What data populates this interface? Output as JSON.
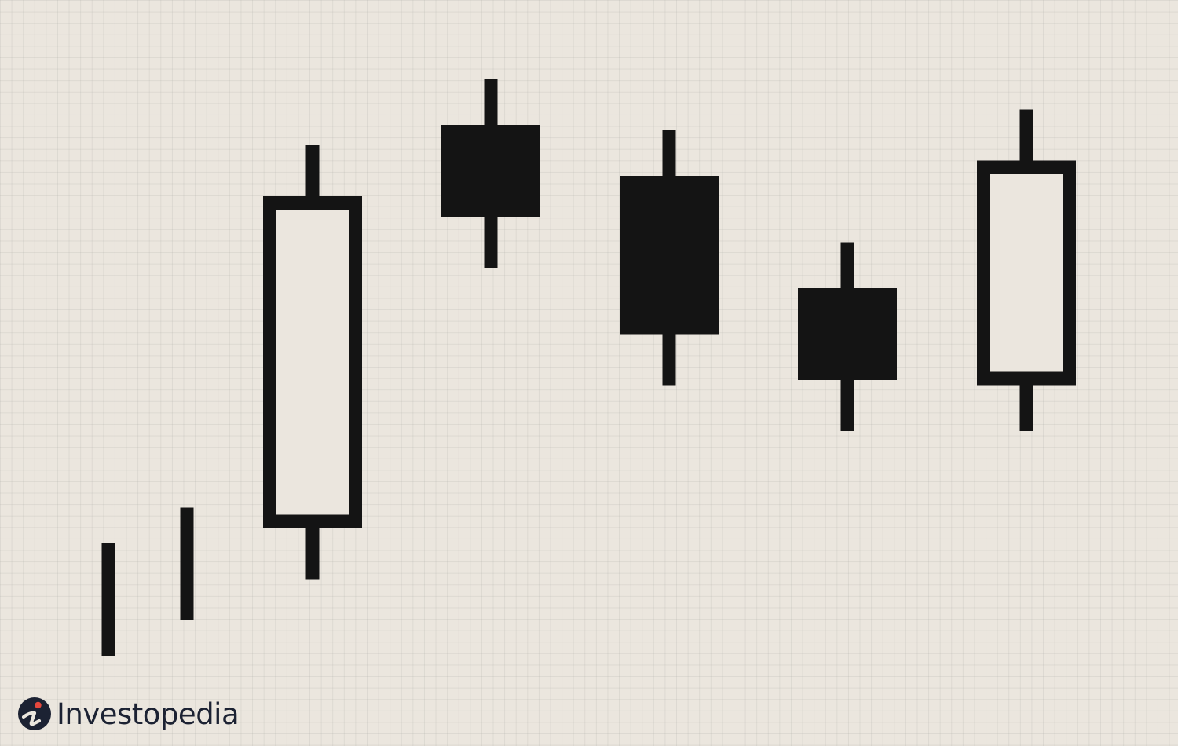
{
  "brand": {
    "name": "Investopedia",
    "mark_color": "#1c2233",
    "accent_color": "#e5473d"
  },
  "chart_data": {
    "type": "candlestick",
    "title": "",
    "xlabel": "",
    "ylabel": "",
    "axes_visible": false,
    "grid": true,
    "ylim": [
      0,
      100
    ],
    "candles": [
      {
        "open": 10,
        "high": 32,
        "low": 10,
        "close": 10,
        "kind": "line"
      },
      {
        "open": 17,
        "high": 39,
        "low": 17,
        "close": 17,
        "kind": "line"
      },
      {
        "open": 35,
        "high": 110,
        "low": 25,
        "close": 100,
        "kind": "hollow"
      },
      {
        "open": 114,
        "high": 123,
        "low": 86,
        "close": 96,
        "kind": "filled"
      },
      {
        "open": 104,
        "high": 113,
        "low": 63,
        "close": 73,
        "kind": "filled"
      },
      {
        "open": 82,
        "high": 91,
        "low": 54,
        "close": 64,
        "kind": "filled"
      },
      {
        "open": 63,
        "high": 117,
        "low": 54,
        "close": 107,
        "kind": "hollow"
      }
    ],
    "colors": {
      "ink": "#141414",
      "hollow_fill": "#ebe6de"
    }
  }
}
